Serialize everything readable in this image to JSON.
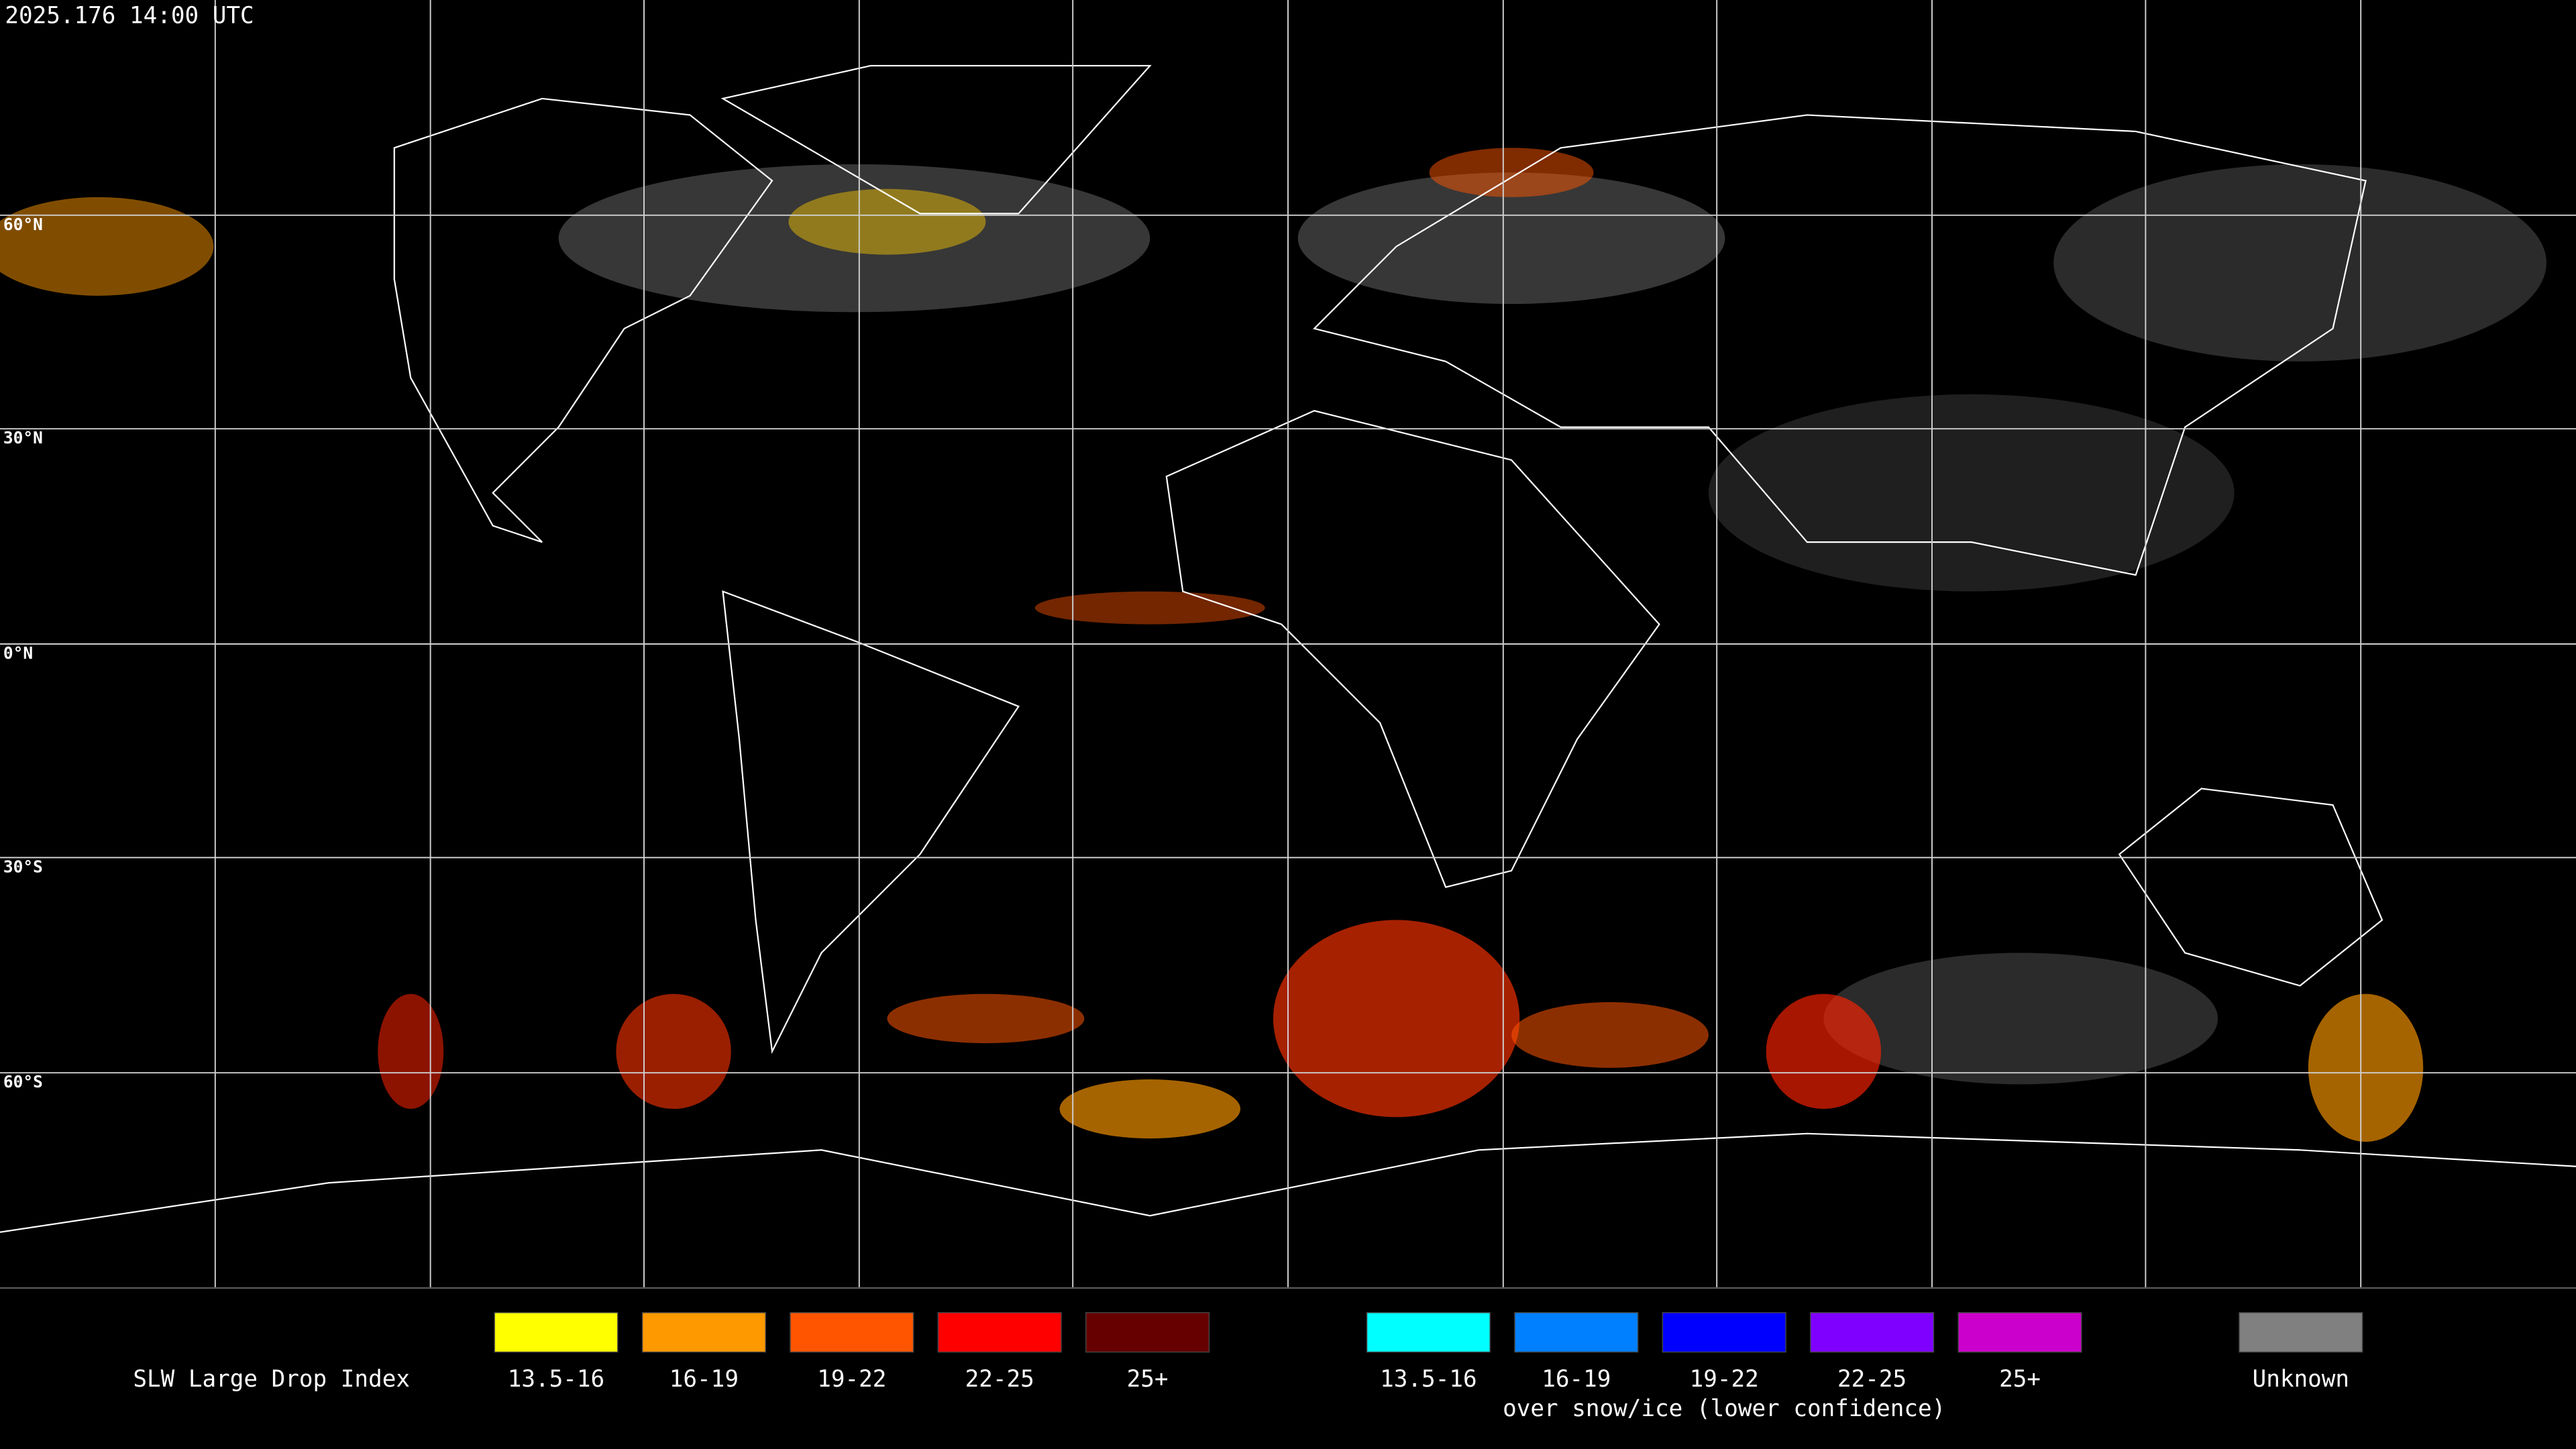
{
  "header": {
    "timestamp": "2025.176 14:00 UTC"
  },
  "map": {
    "latitude_labels": [
      "60°N",
      "30°N",
      "0°N",
      "30°S",
      "60°S"
    ]
  },
  "legend": {
    "title": "SLW Large Drop Index",
    "groups": [
      {
        "items": [
          {
            "label": "13.5-16",
            "color": "#ffff00"
          },
          {
            "label": "16-19",
            "color": "#ff9900"
          },
          {
            "label": "19-22",
            "color": "#ff5500"
          },
          {
            "label": "22-25",
            "color": "#ff0000"
          },
          {
            "label": "25+",
            "color": "#660000"
          }
        ]
      },
      {
        "items": [
          {
            "label": "13.5-16",
            "color": "#00ffff"
          },
          {
            "label": "16-19",
            "color": "#0080ff"
          },
          {
            "label": "19-22",
            "color": "#0000ff"
          },
          {
            "label": "22-25",
            "color": "#7f00ff"
          },
          {
            "label": "25+",
            "color": "#cc00cc"
          }
        ],
        "caption": "over snow/ice (lower confidence)"
      },
      {
        "items": [
          {
            "label": "Unknown",
            "color": "#808080"
          }
        ]
      }
    ]
  }
}
